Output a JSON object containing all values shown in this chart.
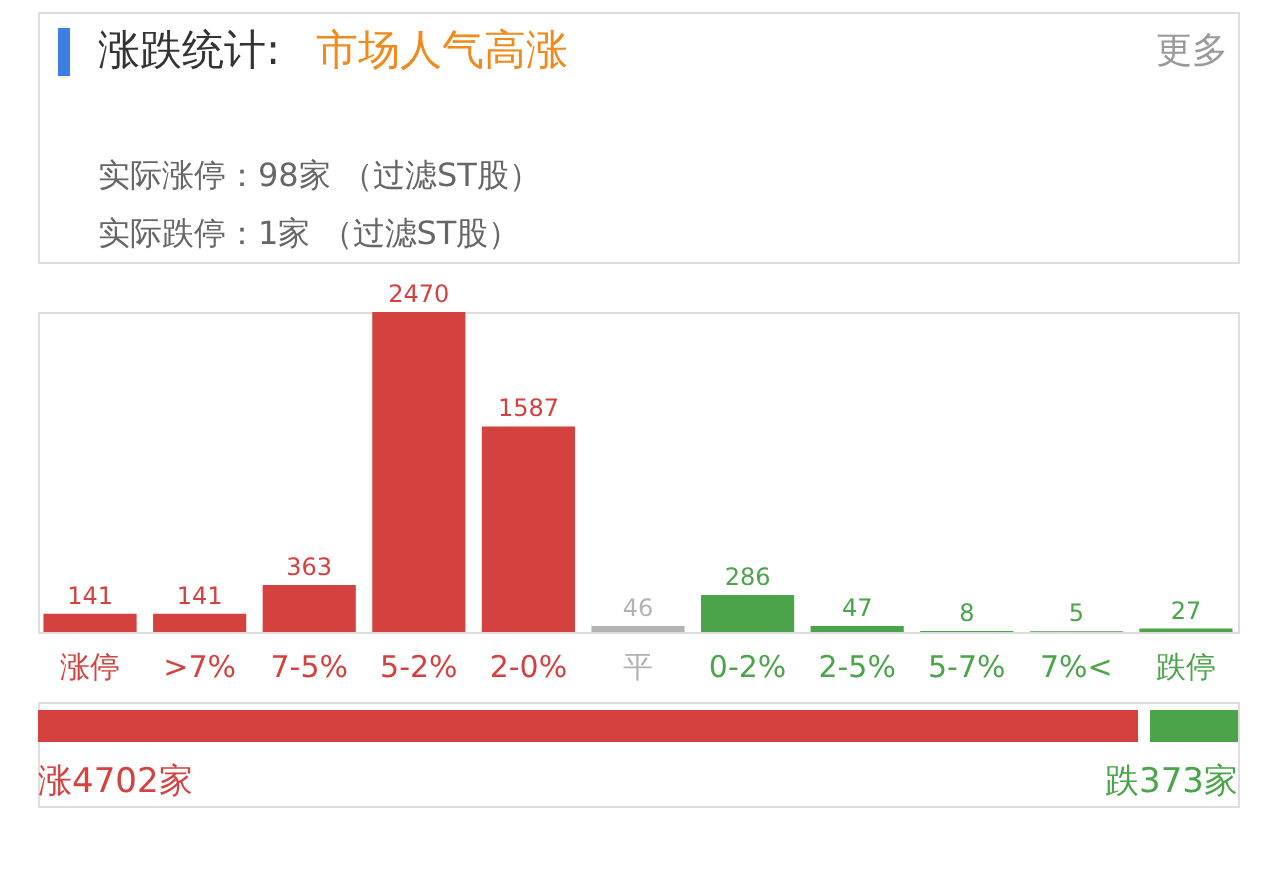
{
  "chart_data": {
    "type": "bar",
    "title": "涨跌统计:",
    "subtitle": "市场人气高涨",
    "annotations": [
      "更多",
      "实际涨停：98家 （过滤ST股）",
      "实际跌停：1家 （过滤ST股）",
      "涨4702家",
      "跌373家"
    ],
    "categories": [
      "涨停",
      ">7%",
      "7-5%",
      "5-2%",
      "2-0%",
      "平",
      "0-2%",
      "2-5%",
      "5-7%",
      "7%<",
      "跌停"
    ],
    "values": [
      141,
      141,
      363,
      2470,
      1587,
      46,
      286,
      47,
      8,
      5,
      27
    ],
    "colors": [
      "#d4413f",
      "#d4413f",
      "#d4413f",
      "#d4413f",
      "#d4413f",
      "#b3b3b3",
      "#4ba44a",
      "#4ba44a",
      "#4ba44a",
      "#4ba44a",
      "#4ba44a"
    ],
    "data_labels": true,
    "tick_labels": "x",
    "grid": false,
    "legend": false
  }
}
